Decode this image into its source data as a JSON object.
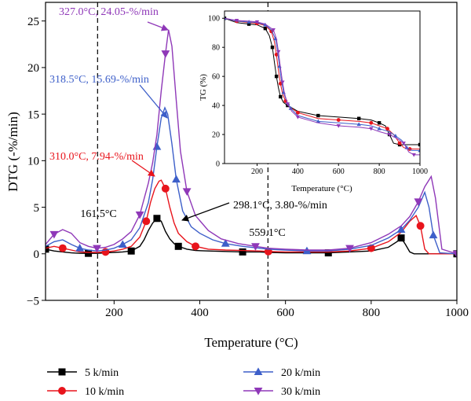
{
  "chart_data": [
    {
      "type": "line",
      "xlabel": "Temperature (°C)",
      "ylabel": "DTG (-%/min)",
      "xlim": [
        40,
        1000
      ],
      "ylim": [
        -5,
        27
      ],
      "xticks": [
        200,
        400,
        600,
        800,
        1000
      ],
      "yticks": [
        -5,
        0,
        5,
        10,
        15,
        20,
        25
      ],
      "grid": false,
      "legend_position": "bottom",
      "reference_lines": [
        {
          "x": 161.5,
          "label": "161.5°C",
          "color": "#000000"
        },
        {
          "x": 559.1,
          "label": "559.1°C",
          "color": "#000000"
        }
      ],
      "series": [
        {
          "name": "5 k/min",
          "color": "#000000",
          "marker": "square",
          "x": [
            40,
            60,
            80,
            100,
            120,
            140,
            160,
            180,
            200,
            220,
            240,
            260,
            270,
            280,
            290,
            300,
            310,
            320,
            330,
            340,
            350,
            370,
            390,
            420,
            460,
            500,
            540,
            560,
            600,
            650,
            700,
            750,
            800,
            840,
            860,
            870,
            880,
            890,
            900,
            950,
            1000
          ],
          "y": [
            0.5,
            0.3,
            0.2,
            0.1,
            0.05,
            0.05,
            0.05,
            0.1,
            0.15,
            0.2,
            0.3,
            0.8,
            1.5,
            2.5,
            3.3,
            3.8,
            3.5,
            2.4,
            1.6,
            1.1,
            0.8,
            0.5,
            0.35,
            0.3,
            0.25,
            0.2,
            0.2,
            0.15,
            0.1,
            0.1,
            0.1,
            0.2,
            0.3,
            0.7,
            1.3,
            1.7,
            1.0,
            0.2,
            0.0,
            0.0,
            0.0
          ]
        },
        {
          "name": "10 k/min",
          "color": "#e8141c",
          "marker": "circle",
          "x": [
            40,
            60,
            80,
            100,
            120,
            140,
            160,
            180,
            200,
            220,
            240,
            260,
            275,
            285,
            295,
            305,
            310,
            320,
            330,
            340,
            350,
            370,
            390,
            420,
            460,
            500,
            540,
            560,
            600,
            650,
            700,
            750,
            800,
            840,
            870,
            890,
            905,
            915,
            925,
            935,
            960,
            1000
          ],
          "y": [
            0.6,
            0.8,
            0.6,
            0.4,
            0.2,
            0.15,
            0.15,
            0.2,
            0.3,
            0.5,
            0.8,
            1.8,
            3.5,
            5.5,
            7.0,
            7.8,
            7.9,
            7.0,
            5.0,
            3.3,
            2.2,
            1.3,
            0.8,
            0.5,
            0.4,
            0.35,
            0.3,
            0.25,
            0.2,
            0.2,
            0.2,
            0.3,
            0.6,
            1.3,
            2.3,
            3.5,
            4.1,
            3.0,
            0.5,
            0.0,
            0.0,
            0.0
          ]
        },
        {
          "name": "20 k/min",
          "color": "#3d5fc9",
          "marker": "triangle-up",
          "x": [
            40,
            60,
            80,
            100,
            120,
            140,
            160,
            180,
            200,
            220,
            240,
            260,
            280,
            290,
            300,
            310,
            318.5,
            325,
            335,
            345,
            360,
            380,
            400,
            430,
            460,
            500,
            540,
            560,
            600,
            650,
            700,
            750,
            800,
            840,
            870,
            890,
            910,
            925,
            935,
            945,
            960,
            1000
          ],
          "y": [
            0.8,
            1.3,
            1.5,
            1.0,
            0.6,
            0.4,
            0.3,
            0.4,
            0.6,
            1.0,
            1.5,
            2.8,
            5.5,
            8.0,
            11.5,
            14.6,
            15.69,
            15.0,
            11.8,
            8.0,
            4.6,
            2.9,
            2.2,
            1.5,
            1.1,
            0.8,
            0.6,
            0.5,
            0.4,
            0.3,
            0.3,
            0.5,
            0.9,
            1.7,
            2.6,
            3.6,
            5.0,
            6.6,
            5.0,
            2.0,
            0.1,
            0.0
          ]
        },
        {
          "name": "30 k/min",
          "color": "#8f38b8",
          "marker": "triangle-down",
          "x": [
            40,
            60,
            80,
            100,
            120,
            140,
            160,
            180,
            200,
            220,
            240,
            260,
            280,
            290,
            300,
            310,
            320,
            327,
            335,
            345,
            355,
            370,
            390,
            420,
            450,
            490,
            530,
            560,
            600,
            650,
            700,
            750,
            800,
            840,
            870,
            890,
            910,
            925,
            940,
            950,
            965,
            1000
          ],
          "y": [
            1.0,
            2.1,
            2.6,
            2.2,
            1.2,
            0.8,
            0.6,
            0.7,
            1.0,
            1.6,
            2.4,
            4.2,
            7.6,
            9.8,
            12.8,
            17.5,
            21.5,
            24.05,
            22.3,
            16.5,
            11.0,
            6.7,
            4.1,
            2.5,
            1.6,
            1.1,
            0.8,
            0.6,
            0.5,
            0.4,
            0.4,
            0.6,
            1.2,
            2.1,
            3.0,
            4.0,
            5.6,
            7.2,
            8.3,
            6.0,
            0.5,
            0.0
          ]
        }
      ],
      "annotations": [
        {
          "text": "327.0°C, 24.05-%/min",
          "color": "#8f38b8",
          "x": 327.0,
          "y": 24.05
        },
        {
          "text": "318.5°C, 15.69-%/min",
          "color": "#3d5fc9",
          "x": 318.5,
          "y": 15.69
        },
        {
          "text": "310.0°C, 7.94-%/min",
          "color": "#e8141c",
          "x": 310.0,
          "y": 7.94
        },
        {
          "text": "298.1°C, 3.80-%/min",
          "color": "#000000",
          "x": 298.1,
          "y": 3.8
        }
      ]
    },
    {
      "type": "line",
      "position": "inset top-right",
      "xlabel": "Temperature (°C)",
      "ylabel": "TG (%)",
      "xlim": [
        40,
        1000
      ],
      "ylim": [
        0,
        105
      ],
      "xticks": [
        200,
        400,
        600,
        800,
        1000
      ],
      "yticks": [
        0,
        20,
        40,
        60,
        80,
        100
      ],
      "series": [
        {
          "name": "5 k/min",
          "color": "#000000",
          "marker": "square",
          "x": [
            40,
            100,
            160,
            200,
            240,
            260,
            275,
            285,
            295,
            305,
            315,
            330,
            350,
            400,
            500,
            600,
            700,
            760,
            800,
            830,
            850,
            870,
            900,
            950,
            1000
          ],
          "y": [
            100,
            97,
            96,
            95.5,
            93,
            88,
            80,
            70,
            60,
            52,
            46,
            42,
            40,
            36,
            33,
            32,
            31,
            30,
            28,
            26,
            20,
            14,
            13,
            13,
            13
          ]
        },
        {
          "name": "10 k/min",
          "color": "#e8141c",
          "marker": "circle",
          "x": [
            40,
            100,
            160,
            200,
            240,
            270,
            285,
            295,
            305,
            315,
            325,
            340,
            360,
            400,
            500,
            600,
            700,
            760,
            800,
            840,
            870,
            900,
            920,
            950,
            1000
          ],
          "y": [
            100,
            98,
            97,
            96.5,
            95,
            91,
            84,
            75,
            64,
            55,
            48,
            43,
            39,
            35,
            31,
            30,
            29,
            28,
            26,
            24,
            20,
            14,
            11,
            10,
            10
          ]
        },
        {
          "name": "20 k/min",
          "color": "#3d5fc9",
          "marker": "triangle-up",
          "x": [
            40,
            100,
            160,
            200,
            240,
            270,
            290,
            300,
            310,
            320,
            330,
            345,
            365,
            400,
            500,
            600,
            700,
            760,
            800,
            850,
            880,
            910,
            935,
            960,
            1000
          ],
          "y": [
            100,
            98,
            97.5,
            97,
            95.5,
            92,
            86,
            78,
            67,
            57,
            49,
            43,
            38,
            33,
            29,
            28,
            27,
            26,
            24,
            22,
            19,
            16,
            11,
            9,
            9
          ]
        },
        {
          "name": "30 k/min",
          "color": "#8f38b8",
          "marker": "triangle-down",
          "x": [
            40,
            100,
            160,
            200,
            240,
            280,
            295,
            305,
            315,
            325,
            335,
            350,
            370,
            400,
            500,
            600,
            700,
            760,
            800,
            850,
            890,
            920,
            945,
            970,
            1000
          ],
          "y": [
            100,
            98.5,
            98,
            97.5,
            96,
            92,
            86,
            77,
            66,
            56,
            48,
            41,
            36,
            32,
            28,
            26,
            25,
            24,
            22,
            20,
            17,
            14,
            8,
            6,
            6
          ]
        }
      ]
    }
  ]
}
